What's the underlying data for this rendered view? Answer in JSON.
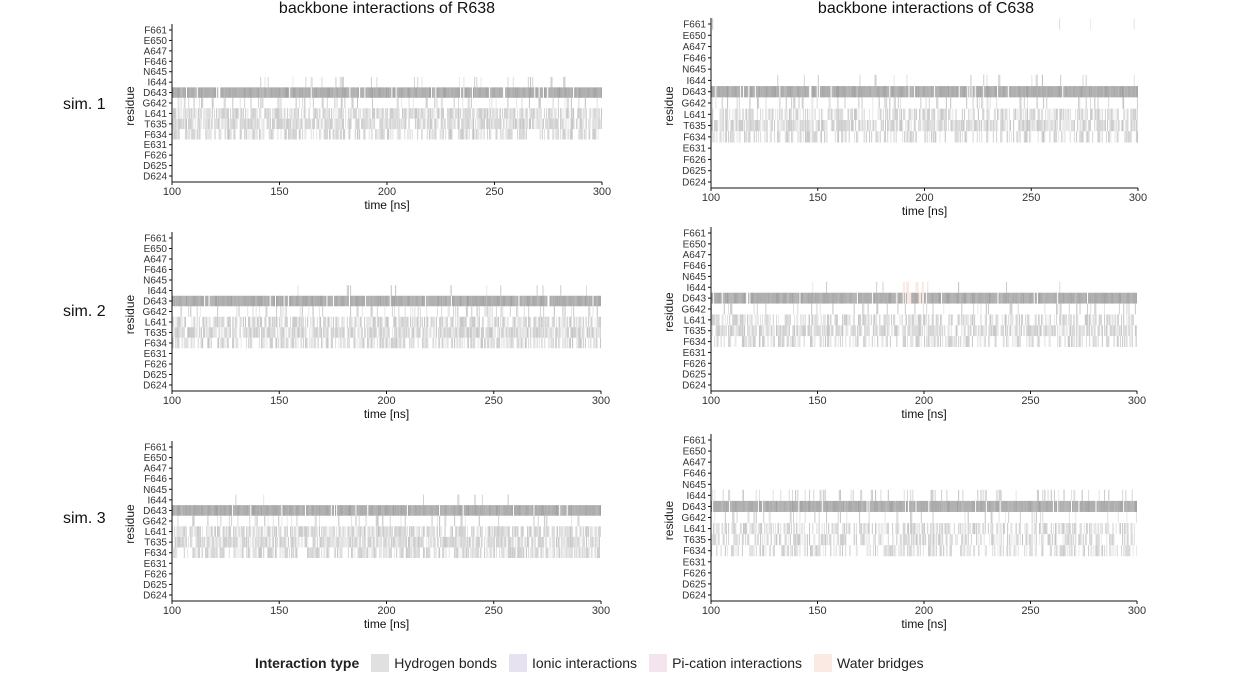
{
  "column_titles": [
    "backbone interactions of R638",
    "backbone interactions of C638"
  ],
  "row_labels": [
    "sim. 1",
    "sim. 2",
    "sim. 3"
  ],
  "legend": {
    "title": "Interaction type",
    "items": [
      {
        "label": "Hydrogen bonds",
        "color": "#e0e0e0"
      },
      {
        "label": "Ionic interactions",
        "color": "#e6e2f0"
      },
      {
        "label": "Pi-cation interactions",
        "color": "#f3e4ee"
      },
      {
        "label": "Water bridges",
        "color": "#fbe9e3"
      }
    ]
  },
  "chart_data": [
    {
      "type": "heatmap",
      "title": "backbone interactions of R638",
      "row_label": "sim. 1",
      "xlabel": "time [ns]",
      "ylabel": "residue",
      "xlim": [
        100,
        300
      ],
      "xticks": [
        100,
        150,
        200,
        250,
        300
      ],
      "residues": [
        "F661",
        "E650",
        "A647",
        "F646",
        "N645",
        "I644",
        "D643",
        "G642",
        "L641",
        "T635",
        "F634",
        "E631",
        "F626",
        "D625",
        "D624"
      ],
      "occupancy": {
        "I644": 0.08,
        "D643": 0.95,
        "G642": 0.2,
        "L641": 0.75,
        "T635": 0.8,
        "F634": 0.6
      },
      "water_bridge_occupancy": {},
      "active_range": {
        "I644": [
          135,
          285
        ]
      }
    },
    {
      "type": "heatmap",
      "title": "backbone interactions of C638",
      "row_label": "sim. 1",
      "xlabel": "time [ns]",
      "ylabel": "residue",
      "xlim": [
        100,
        300
      ],
      "xticks": [
        100,
        150,
        200,
        250,
        300
      ],
      "residues": [
        "F661",
        "E650",
        "A647",
        "F646",
        "N645",
        "I644",
        "D643",
        "G642",
        "L641",
        "T635",
        "F634",
        "E631",
        "F626",
        "D625",
        "D624"
      ],
      "occupancy": {
        "F661": 0.01,
        "I644": 0.05,
        "D643": 0.95,
        "G642": 0.2,
        "L641": 0.55,
        "T635": 0.75,
        "F634": 0.45
      },
      "water_bridge_occupancy": {},
      "active_range": {
        "I644": [
          125,
          300
        ]
      }
    },
    {
      "type": "heatmap",
      "title": "",
      "row_label": "sim. 2",
      "xlabel": "time [ns]",
      "ylabel": "residue",
      "xlim": [
        100,
        300
      ],
      "xticks": [
        100,
        150,
        200,
        250,
        300
      ],
      "residues": [
        "F661",
        "E650",
        "A647",
        "F646",
        "N645",
        "I644",
        "D643",
        "G642",
        "L641",
        "T635",
        "F634",
        "E631",
        "F626",
        "D625",
        "D624"
      ],
      "occupancy": {
        "I644": 0.05,
        "D643": 0.95,
        "G642": 0.2,
        "L641": 0.7,
        "T635": 0.85,
        "F634": 0.6
      },
      "water_bridge_occupancy": {},
      "active_range": {
        "I644": [
          150,
          295
        ]
      }
    },
    {
      "type": "heatmap",
      "title": "",
      "row_label": "sim. 2",
      "xlabel": "time [ns]",
      "ylabel": "residue",
      "xlim": [
        100,
        300
      ],
      "xticks": [
        100,
        150,
        200,
        250,
        300
      ],
      "residues": [
        "F661",
        "E650",
        "A647",
        "F646",
        "N645",
        "I644",
        "D643",
        "G642",
        "L641",
        "T635",
        "F634",
        "E631",
        "F626",
        "D625",
        "D624"
      ],
      "occupancy": {
        "I644": 0.04,
        "D643": 0.95,
        "G642": 0.15,
        "L641": 0.6,
        "T635": 0.8,
        "F634": 0.5
      },
      "water_bridge_occupancy": {
        "I644": 0.04,
        "D643": 0.2
      },
      "water_bridge_range": [
        190,
        200
      ],
      "active_range": {
        "I644": [
          135,
          280
        ]
      }
    },
    {
      "type": "heatmap",
      "title": "",
      "row_label": "sim. 3",
      "xlabel": "time [ns]",
      "ylabel": "residue",
      "xlim": [
        100,
        300
      ],
      "xticks": [
        100,
        150,
        200,
        250,
        300
      ],
      "residues": [
        "F661",
        "E650",
        "A647",
        "F646",
        "N645",
        "I644",
        "D643",
        "G642",
        "L641",
        "T635",
        "F634",
        "E631",
        "F626",
        "D625",
        "D624"
      ],
      "occupancy": {
        "I644": 0.02,
        "D643": 0.95,
        "G642": 0.15,
        "L641": 0.75,
        "T635": 0.85,
        "F634": 0.65
      },
      "water_bridge_occupancy": {},
      "active_range": {
        "I644": [
          120,
          270
        ]
      }
    },
    {
      "type": "heatmap",
      "title": "",
      "row_label": "sim. 3",
      "xlabel": "time [ns]",
      "ylabel": "residue",
      "xlim": [
        100,
        300
      ],
      "xticks": [
        100,
        150,
        200,
        250,
        300
      ],
      "residues": [
        "F661",
        "E650",
        "A647",
        "F646",
        "N645",
        "I644",
        "D643",
        "G642",
        "L641",
        "T635",
        "F634",
        "E631",
        "F626",
        "D625",
        "D624"
      ],
      "occupancy": {
        "I644": 0.2,
        "D643": 0.95,
        "G642": 0.15,
        "L641": 0.55,
        "T635": 0.55,
        "F634": 0.5
      },
      "water_bridge_occupancy": {},
      "active_range": {
        "I644": [
          100,
          300
        ]
      }
    }
  ]
}
